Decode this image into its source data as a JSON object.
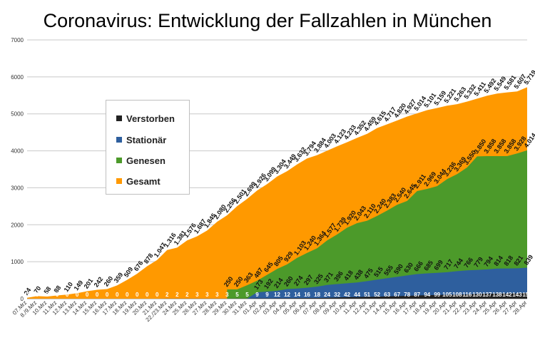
{
  "chart_data": {
    "type": "area",
    "title": "Coronavirus: Entwicklung der Fallzahlen in München",
    "ylim": [
      0,
      7000
    ],
    "yticks": [
      0,
      1000,
      2000,
      3000,
      4000,
      5000,
      6000,
      7000
    ],
    "grid": true,
    "legend_position": "left",
    "categories": [
      "07.Mrz",
      "08./9.Mrz",
      "10.Mrz",
      "11.Mrz",
      "12.Mrz",
      "13.Mrz",
      "14.Mrz",
      "15.Mrz",
      "16.Mrz",
      "17.Mrz",
      "18.Mrz",
      "19.Mrz",
      "20.Mrz",
      "21.Mrz",
      "22./23.Mrz",
      "24.Mrz",
      "25.Mrz",
      "26.Mrz",
      "27.Mrz",
      "28.Mrz",
      "29.Mrz",
      "30.Mrz",
      "31.Mrz",
      "01.Apr",
      "02.Apr",
      "03.Apr",
      "04.Apr",
      "05.Apr",
      "06.Apr",
      "07.Apr",
      "08.Apr",
      "09.Apr",
      "10.Apr",
      "11.Apr",
      "12.Apr",
      "13.Apr",
      "14.Apr",
      "15.Apr",
      "16.Apr",
      "17.Apr",
      "18.Apr",
      "19.Apr",
      "20.Apr",
      "21.Apr",
      "22.Apr",
      "23.Apr",
      "24.Apr",
      "25.Apr",
      "26.Apr",
      "27.Apr",
      "28.Apr"
    ],
    "x_tick_labels": [
      "07.Mrz",
      "8./9.Mrz",
      "10.Mrz",
      "11.Mrz",
      "12.Mrz",
      "13.Mrz",
      "14.Mrz",
      "15.Mrz",
      "16.Mrz",
      "17.Mrz",
      "18.Mrz",
      "19.Mrz",
      "20.Mrz",
      "21.Mrz",
      "22./23.Mrz",
      "24.Mrz",
      "25.Mrz",
      "26.Mrz",
      "27.Mrz",
      "28.Mrz",
      "29.Mrz",
      "30.Mrz",
      "31.Mrz",
      "01.Apr",
      "02.Apr",
      "03.Apr",
      "04.Apr",
      "05.Apr",
      "06.Apr",
      "07.Apr",
      "08.Apr",
      "09.Apr",
      "10.Apr",
      "11.Apr",
      "12.Apr",
      "13.Apr",
      "14.Apr",
      "15.Apr",
      "16.Apr",
      "17.Apr",
      "18.Apr",
      "19.Apr",
      "20.Apr",
      "21.Apr",
      "22.Apr",
      "23.Apr",
      "24.Apr",
      "25.Apr",
      "26.Apr",
      "27.Apr",
      "28.Apr"
    ],
    "series": [
      {
        "name": "Gesamt",
        "color": "#ff9900",
        "values": [
          24,
          70,
          58,
          88,
          110,
          149,
          201,
          242,
          260,
          359,
          509,
          676,
          878,
          1047,
          1316,
          1381,
          1576,
          1687,
          1845,
          2080,
          2256,
          2501,
          2699,
          2926,
          3099,
          3304,
          3449,
          3632,
          3794,
          3884,
          4003,
          4123,
          4233,
          4352,
          4459,
          4615,
          4717,
          4820,
          4927,
          5014,
          5101,
          5159,
          5221,
          5263,
          5332,
          5411,
          5492,
          5549,
          5581,
          5607,
          5719
        ],
        "labels": [
          "24",
          "70",
          "58",
          "88",
          "110",
          "149",
          "201",
          "242",
          "260",
          "359",
          "509",
          "676",
          "878",
          "1.047",
          "1.316",
          "1.381",
          "1.576",
          "1.687",
          "1.845",
          "2.080",
          "2.256",
          "2.501",
          "2.699",
          "2.926",
          "3.099",
          "3.304",
          "3.449",
          "3.632",
          "3.794",
          "3.884",
          "4.003",
          "4.123",
          "4.233",
          "4.352",
          "4.459",
          "4.615",
          "4.717",
          "4.820",
          "4.927",
          "5.014",
          "5.101",
          "5.159",
          "5.221",
          "5.263",
          "5.332",
          "5.411",
          "5.492",
          "5.549",
          "5.581",
          "5.607",
          "5.719"
        ]
      },
      {
        "name": "Genesen",
        "color": "#4c9a2a",
        "values": [
          null,
          null,
          null,
          null,
          null,
          null,
          null,
          null,
          null,
          null,
          null,
          null,
          null,
          null,
          null,
          null,
          null,
          null,
          null,
          null,
          250,
          250,
          363,
          487,
          645,
          805,
          929,
          1103,
          1240,
          1364,
          1577,
          1739,
          1920,
          2043,
          2110,
          2240,
          2383,
          2540,
          2645,
          2911,
          2969,
          3044,
          3236,
          3369,
          3550,
          3850,
          3858,
          3858,
          3858,
          3928,
          4014
        ],
        "labels": [
          "",
          "",
          "",
          "",
          "",
          "",
          "",
          "",
          "",
          "",
          "",
          "",
          "",
          "",
          "",
          "",
          "",
          "",
          "",
          "",
          "250",
          "250",
          "363",
          "487",
          "645",
          "805",
          "929",
          "1.103",
          "1.240",
          "1.364",
          "1.577",
          "1.739",
          "1.920",
          "2.043",
          "2.110",
          "2.240",
          "2.383",
          "2.540",
          "2.645",
          "2.911",
          "2.969",
          "3.044",
          "3.236",
          "3.369",
          "3.550",
          "3.850",
          "3.858",
          "3.858",
          "3.858",
          "3.928",
          "4.014"
        ]
      },
      {
        "name": "Stationär",
        "color": "#2e5f9e",
        "values": [
          null,
          null,
          null,
          null,
          null,
          null,
          null,
          null,
          null,
          null,
          null,
          null,
          null,
          null,
          null,
          null,
          null,
          null,
          null,
          null,
          null,
          null,
          5,
          173,
          192,
          214,
          260,
          274,
          297,
          325,
          371,
          396,
          418,
          438,
          475,
          515,
          555,
          590,
          630,
          666,
          685,
          699,
          717,
          744,
          766,
          779,
          794,
          814,
          818,
          821,
          839
        ],
        "labels": [
          "",
          "",
          "",
          "",
          "",
          "",
          "",
          "",
          "",
          "",
          "",
          "",
          "",
          "",
          "",
          "",
          "",
          "",
          "",
          "",
          "",
          "",
          "",
          "173",
          "192",
          "214",
          "260",
          "274",
          "297",
          "325",
          "371",
          "396",
          "418",
          "438",
          "475",
          "515",
          "555",
          "590",
          "630",
          "666",
          "685",
          "699",
          "717",
          "744",
          "766",
          "779",
          "794",
          "814",
          "818",
          "821",
          "839"
        ]
      },
      {
        "name": "Verstorben",
        "color": "#222222",
        "values": [
          0,
          0,
          0,
          0,
          0,
          0,
          0,
          0,
          0,
          0,
          0,
          0,
          0,
          0,
          2,
          2,
          2,
          3,
          3,
          3,
          3,
          5,
          5,
          9,
          9,
          12,
          12,
          14,
          16,
          18,
          24,
          32,
          42,
          44,
          51,
          52,
          63,
          67,
          78,
          87,
          94,
          99,
          105,
          108,
          116,
          130,
          137,
          138,
          142,
          143,
          157
        ],
        "labels": [
          "0",
          "0",
          "0",
          "0",
          "0",
          "0",
          "0",
          "0",
          "0",
          "0",
          "0",
          "0",
          "0",
          "0",
          "2",
          "2",
          "2",
          "3",
          "3",
          "3",
          "3",
          "5",
          "5",
          "9",
          "9",
          "12",
          "12",
          "14",
          "16",
          "18",
          "24",
          "32",
          "42",
          "44",
          "51",
          "52",
          "63",
          "67",
          "78",
          "87",
          "94",
          "99",
          "105",
          "108",
          "116",
          "130",
          "137",
          "138",
          "142",
          "143",
          "157"
        ]
      }
    ],
    "legend": [
      "Verstorben",
      "Stationär",
      "Genesen",
      "Gesamt"
    ]
  }
}
